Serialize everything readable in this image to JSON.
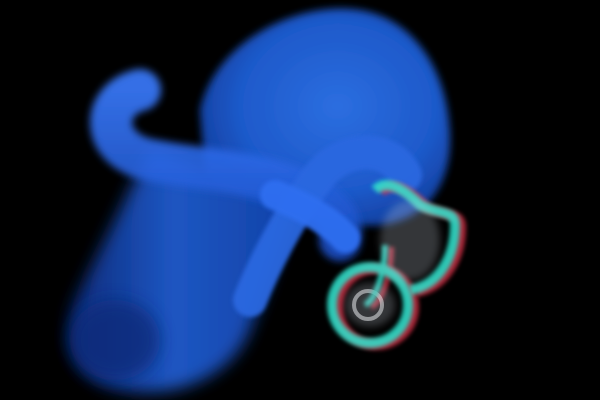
{
  "scene": {
    "background_color": "#000000",
    "object_color": "#1f5fd6",
    "highlight_color": "#3a7bff",
    "anaglyph_cyan": "#2ee6d0",
    "anaglyph_red": "#e0304a"
  }
}
